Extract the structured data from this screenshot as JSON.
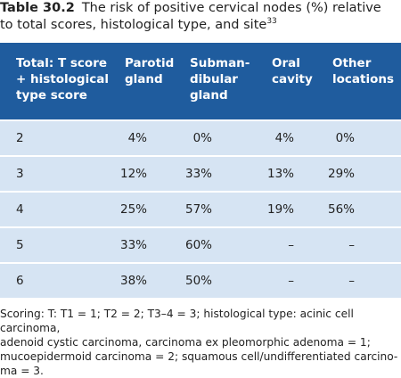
{
  "caption": {
    "label": "Table 30.2",
    "text": "The risk of positive cervical nodes (%) relative to total scores, histological type, and site",
    "ref": "33"
  },
  "table": {
    "header": [
      [
        "Total: T score",
        "+ histological",
        "type score"
      ],
      [
        "Parotid",
        "gland"
      ],
      [
        "Subman-",
        "dibular",
        "gland"
      ],
      [
        "Oral",
        "cavity"
      ],
      [
        "Other",
        "locations"
      ]
    ],
    "rows": [
      [
        "2",
        "4%",
        "0%",
        "4%",
        "0%"
      ],
      [
        "3",
        "12%",
        "33%",
        "13%",
        "29%"
      ],
      [
        "4",
        "25%",
        "57%",
        "19%",
        "56%"
      ],
      [
        "5",
        "33%",
        "60%",
        "–",
        "–"
      ],
      [
        "6",
        "38%",
        "50%",
        "–",
        "–"
      ]
    ]
  },
  "footnote": [
    "Scoring: T: T1 = 1; T2 = 2; T3–4 = 3; histological type: acinic cell carcinoma,",
    "adenoid cystic carcinoma, carcinoma ex pleomorphic adenoma = 1;",
    "mucoepidermoid carcinoma = 2; squamous cell/undifferentiated carcino-",
    "ma = 3."
  ]
}
